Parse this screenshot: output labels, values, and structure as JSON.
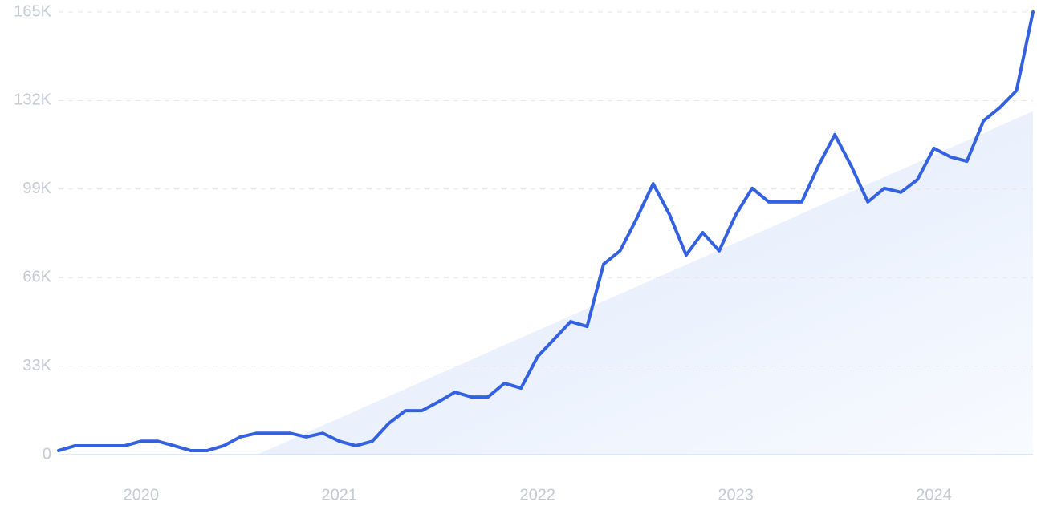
{
  "chart_data": {
    "type": "line",
    "categories": [
      null,
      null,
      null,
      null,
      null,
      "2020",
      null,
      null,
      null,
      null,
      null,
      null,
      null,
      null,
      null,
      null,
      null,
      "2021",
      null,
      null,
      null,
      null,
      null,
      null,
      null,
      null,
      null,
      null,
      null,
      "2022",
      null,
      null,
      null,
      null,
      null,
      null,
      null,
      null,
      null,
      null,
      null,
      "2023",
      null,
      null,
      null,
      null,
      null,
      null,
      null,
      null,
      null,
      null,
      null,
      "2024",
      null,
      null,
      null,
      null,
      null,
      null
    ],
    "series": [
      {
        "color": "#3361e0",
        "values": [
          1500,
          3300,
          3300,
          3300,
          3300,
          5000,
          5000,
          3300,
          1500,
          1500,
          3300,
          6600,
          8000,
          8000,
          8000,
          6600,
          8000,
          5000,
          3300,
          5000,
          11700,
          16400,
          16400,
          19700,
          23300,
          21500,
          21500,
          26600,
          24800,
          36500,
          43000,
          49600,
          47800,
          71000,
          76000,
          88000,
          101000,
          89400,
          74400,
          82800,
          76000,
          89400,
          99300,
          94200,
          94200,
          94200,
          107600,
          119300,
          107600,
          94200,
          99300,
          97800,
          102500,
          114200,
          111000,
          109400,
          124400,
          129400,
          135700,
          165000
        ]
      },
      {
        "color": "#dfe9fb",
        "values": [
          null,
          null,
          null,
          null,
          null,
          null,
          null,
          null,
          null,
          null,
          null,
          null,
          0,
          2700,
          5400,
          8200,
          10900,
          13600,
          16300,
          19100,
          21800,
          24500,
          27200,
          30000,
          32700,
          35400,
          38100,
          40900,
          43600,
          46300,
          49000,
          51700,
          54500,
          57200,
          59900,
          62600,
          65400,
          68100,
          70800,
          73500,
          76300,
          79000,
          81700,
          84400,
          87100,
          89900,
          92600,
          95300,
          98000,
          100800,
          103500,
          106200,
          108900,
          111700,
          114400,
          117100,
          119800,
          122600,
          125300,
          128000
        ]
      }
    ],
    "ylim": [
      0,
      165000
    ],
    "yticks": [
      0,
      {
        "value": 33000,
        "label": "33K"
      },
      {
        "value": 66000,
        "label": "66K"
      },
      {
        "value": 99000,
        "label": "99K"
      },
      {
        "value": 132000,
        "label": "132K"
      },
      {
        "value": 165000,
        "label": "165K"
      }
    ],
    "grid": true
  }
}
